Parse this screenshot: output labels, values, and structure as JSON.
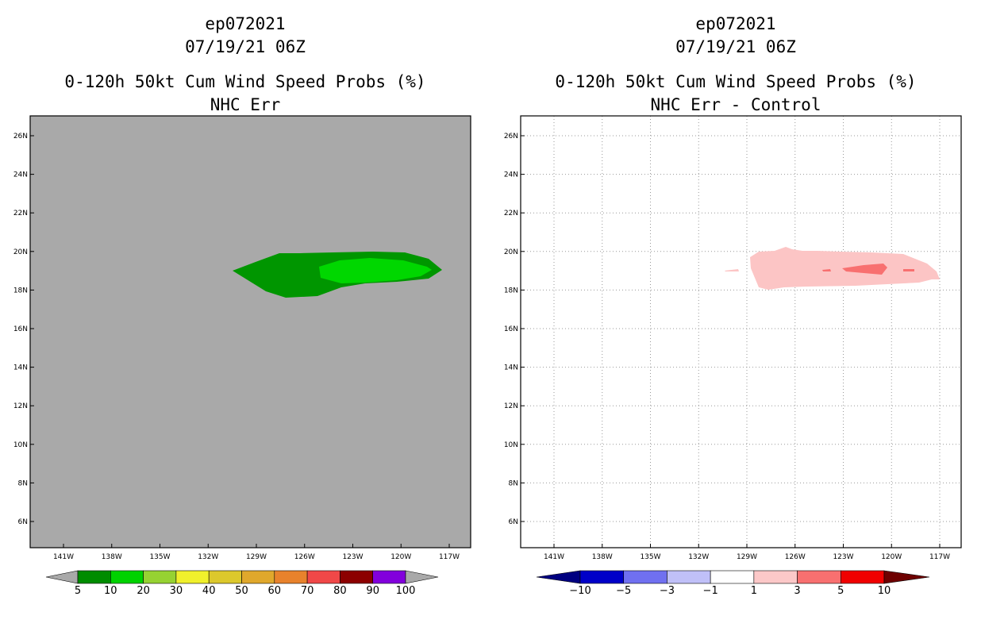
{
  "chart_data": [
    {
      "type": "contour-map",
      "storm_id": "ep072021",
      "datetime": "07/19/21 06Z",
      "title": "0-120h 50kt Cum Wind Speed Probs (%)",
      "subtitle": "NHC Err",
      "lon_ticks": [
        "141W",
        "138W",
        "135W",
        "132W",
        "129W",
        "126W",
        "123W",
        "120W",
        "117W"
      ],
      "lat_ticks": [
        "26N",
        "24N",
        "22N",
        "20N",
        "18N",
        "16N",
        "14N",
        "12N",
        "10N",
        "8N",
        "6N"
      ],
      "background_color": "#a9a9a9",
      "colorbar": {
        "labels": [
          "5",
          "10",
          "20",
          "30",
          "40",
          "50",
          "60",
          "70",
          "80",
          "90",
          "100"
        ],
        "colors": [
          "#008c00",
          "#00d200",
          "#96d232",
          "#f0f02c",
          "#dcc82c",
          "#e0a82c",
          "#e8822c",
          "#f04848",
          "#8c0000",
          "#8200dc"
        ]
      },
      "regions": [
        {
          "level": "5-10%",
          "color": "#009600",
          "extent_lon": [
            "130W",
            "117.5W"
          ],
          "extent_lat": [
            "17.6N",
            "19.8N"
          ]
        },
        {
          "level": "10-20%",
          "color": "#00d700",
          "extent_lon": [
            "124.5W",
            "118.5W"
          ],
          "extent_lat": [
            "18.3N",
            "19.6N"
          ]
        }
      ]
    },
    {
      "type": "contour-map",
      "storm_id": "ep072021",
      "datetime": "07/19/21 06Z",
      "title": "0-120h 50kt Cum Wind Speed Probs (%)",
      "subtitle": "NHC Err - Control",
      "lon_ticks": [
        "141W",
        "138W",
        "135W",
        "132W",
        "129W",
        "126W",
        "123W",
        "120W",
        "117W"
      ],
      "lat_ticks": [
        "26N",
        "24N",
        "22N",
        "20N",
        "18N",
        "16N",
        "14N",
        "12N",
        "10N",
        "8N",
        "6N"
      ],
      "background_color": "#ffffff",
      "grid": "dotted",
      "colorbar": {
        "labels": [
          "−10",
          "−5",
          "−3",
          "−1",
          "1",
          "3",
          "5",
          "10"
        ],
        "colors": [
          "#0000c8",
          "#7070f0",
          "#c0c0f8",
          "#ffffff",
          "#fcc8c8",
          "#f87070",
          "#f00000"
        ]
      },
      "regions": [
        {
          "level": "1-3",
          "color": "#fcc5c5",
          "extent_lon": [
            "128.8W",
            "117W"
          ],
          "extent_lat": [
            "18N",
            "20.1N"
          ]
        },
        {
          "level": "3-5",
          "color": "#f87070",
          "extent_lon": [
            "123.2W",
            "118W"
          ],
          "extent_lat": [
            "18.7N",
            "19.2N"
          ]
        }
      ]
    }
  ]
}
